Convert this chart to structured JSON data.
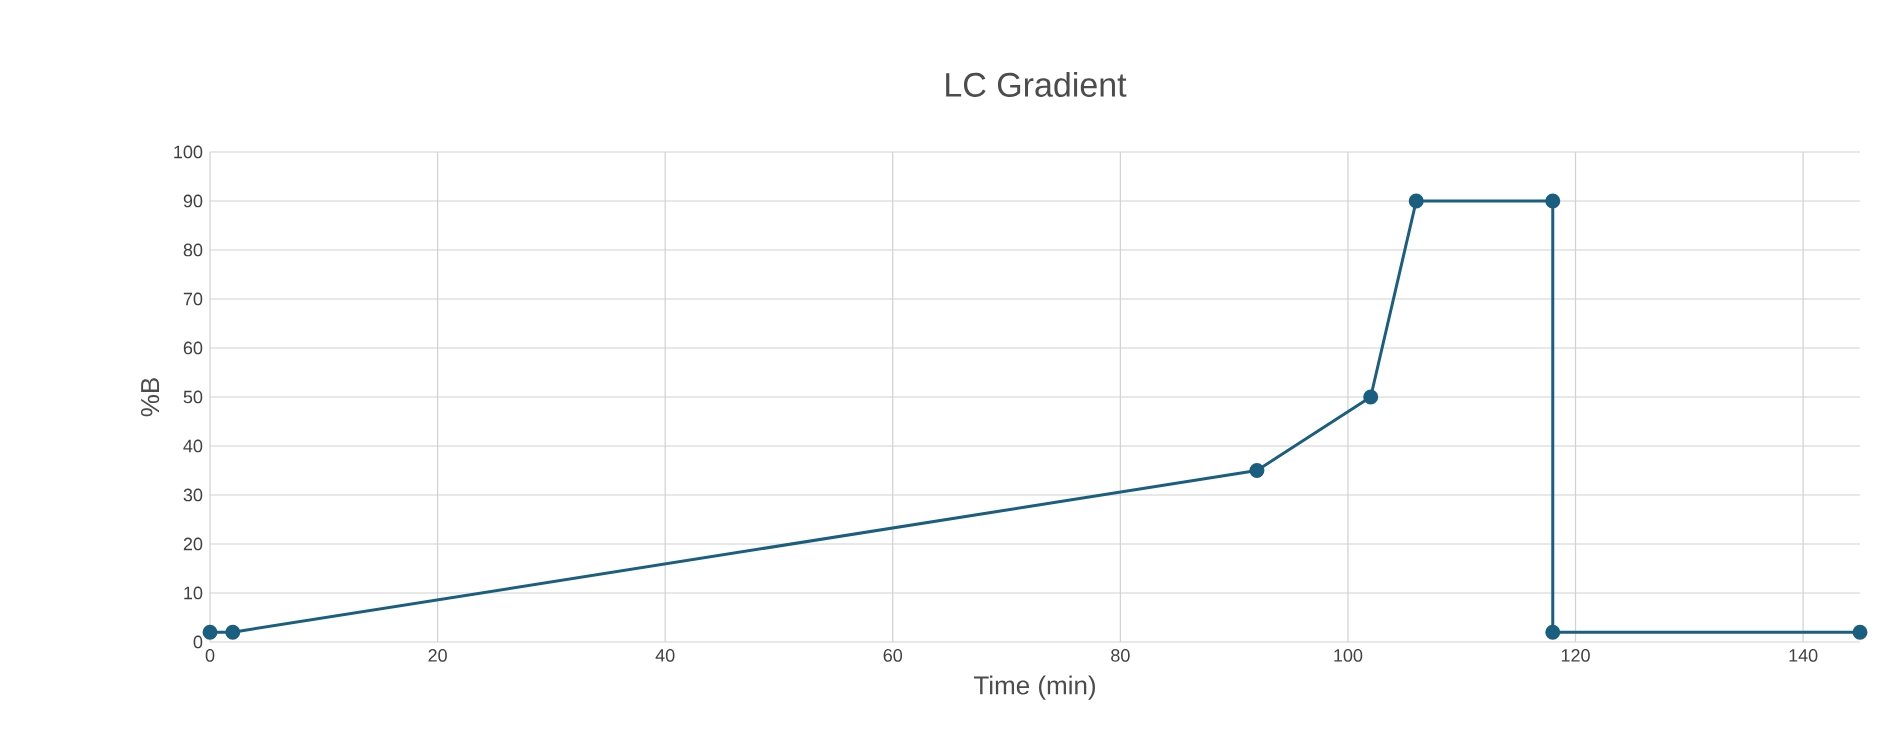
{
  "chart_data": {
    "type": "line",
    "title": "LC Gradient",
    "xlabel": "Time (min)",
    "ylabel": "%B",
    "x": [
      0,
      2,
      92,
      102,
      106,
      118,
      118,
      145
    ],
    "series": [
      {
        "color": "#1a5e80",
        "values": [
          2,
          2,
          35,
          50,
          90,
          90,
          2,
          2
        ]
      }
    ],
    "xlim": [
      0,
      145
    ],
    "ylim": [
      0,
      100
    ],
    "xticks": [
      0,
      20,
      40,
      60,
      80,
      100,
      120,
      140
    ],
    "yticks": [
      0,
      10,
      20,
      30,
      40,
      50,
      60,
      70,
      80,
      90,
      100
    ],
    "grid": true,
    "marker": "circle",
    "line_style": "solid"
  }
}
